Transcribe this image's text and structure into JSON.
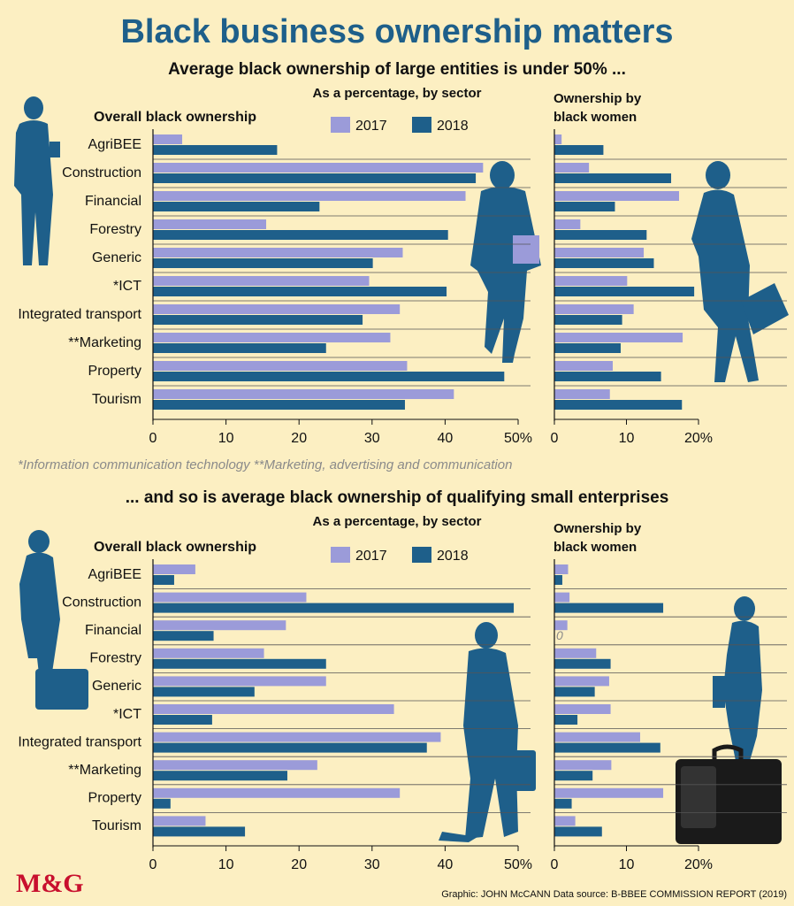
{
  "title": "Black business ownership matters",
  "colors": {
    "c2017": "#9b9bd9",
    "c2018": "#1e5f8a",
    "background": "#fcefc2",
    "title": "#1e5f8a"
  },
  "chart_data": [
    {
      "type": "bar",
      "title": "Average black ownership of large entities is under 50% ...",
      "subtitle": "As a percentage, by sector",
      "left_heading": "Overall black ownership",
      "right_heading_1": "Ownership by",
      "right_heading_2": "black women",
      "legend": [
        "2017",
        "2018"
      ],
      "categories": [
        "AgriBEE",
        "Construction",
        "Financial",
        "Forestry",
        "Generic",
        "*ICT",
        "Integrated transport",
        "**Marketing",
        "Property",
        "Tourism"
      ],
      "overall": {
        "xlim": [
          0,
          50
        ],
        "ticks": [
          "0",
          "10",
          "20",
          "30",
          "40",
          "50%"
        ],
        "series": [
          {
            "name": "2017",
            "values": [
              4,
              45.2,
              42.8,
              15.5,
              34.2,
              29.6,
              33.8,
              32.5,
              34.8,
              41.2
            ]
          },
          {
            "name": "2018",
            "values": [
              17,
              44.2,
              22.8,
              40.4,
              30.1,
              40.2,
              28.7,
              23.7,
              48.1,
              34.5
            ]
          }
        ]
      },
      "women": {
        "xlim": [
          0,
          20
        ],
        "ticks": [
          "0",
          "10",
          "20%"
        ],
        "series": [
          {
            "name": "2017",
            "values": [
              1,
              4.8,
              17.3,
              3.6,
              12.4,
              10.1,
              11,
              17.8,
              8.1,
              7.7
            ]
          },
          {
            "name": "2018",
            "values": [
              6.8,
              16.2,
              8.4,
              12.8,
              13.8,
              19.4,
              9.4,
              9.2,
              14.8,
              17.7
            ]
          }
        ]
      },
      "footnote": "*Information communication technology  **Marketing, advertising and communication"
    },
    {
      "type": "bar",
      "title": "... and so is average black ownership of qualifying small enterprises",
      "subtitle": "As a percentage, by sector",
      "left_heading": "Overall black ownership",
      "right_heading_1": "Ownership by",
      "right_heading_2": "black women",
      "legend": [
        "2017",
        "2018"
      ],
      "categories": [
        "AgriBEE",
        "Construction",
        "Financial",
        "Forestry",
        "Generic",
        "*ICT",
        "Integrated transport",
        "**Marketing",
        "Property",
        "Tourism"
      ],
      "overall": {
        "xlim": [
          0,
          50
        ],
        "ticks": [
          "0",
          "10",
          "20",
          "30",
          "40",
          "50%"
        ],
        "series": [
          {
            "name": "2017",
            "values": [
              5.8,
              21,
              18.2,
              15.2,
              23.7,
              33,
              39.4,
              22.5,
              33.8,
              7.2
            ]
          },
          {
            "name": "2018",
            "values": [
              2.9,
              49.4,
              8.3,
              23.7,
              13.9,
              8.1,
              37.5,
              18.4,
              2.4,
              12.6
            ]
          }
        ]
      },
      "women": {
        "xlim": [
          0,
          20
        ],
        "ticks": [
          "0",
          "10",
          "20%"
        ],
        "series": [
          {
            "name": "2017",
            "values": [
              1.9,
              2.1,
              1.8,
              5.8,
              7.6,
              7.8,
              11.9,
              7.9,
              15.1,
              2.9
            ]
          },
          {
            "name": "2018",
            "values": [
              1.1,
              15.1,
              0,
              7.8,
              5.6,
              3.2,
              14.7,
              5.3,
              2.4,
              6.6
            ]
          }
        ]
      },
      "zero_label": "0"
    }
  ],
  "logo": "M&G",
  "credit": "Graphic: JOHN McCANN  Data source: B-BBEE COMMISSION REPORT (2019)"
}
